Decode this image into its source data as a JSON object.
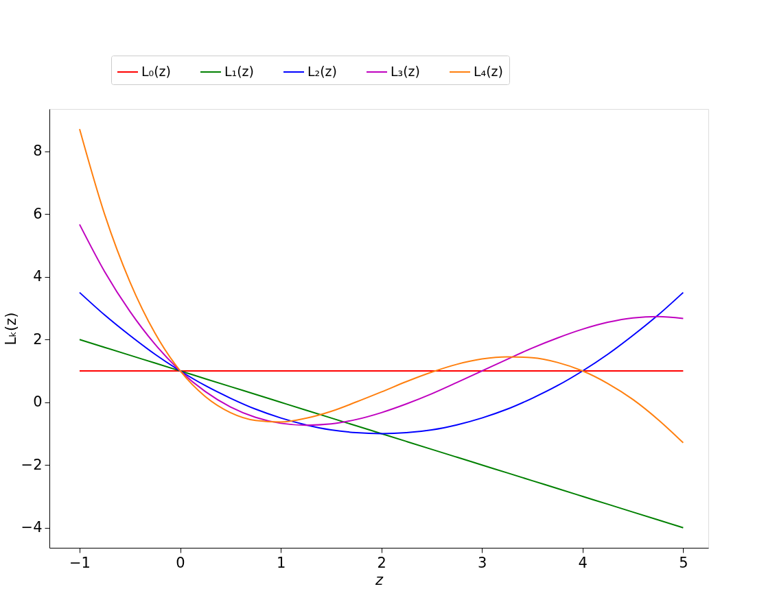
{
  "chart_data": {
    "type": "line",
    "xlabel": "z",
    "ylabel": "Lₖ(z)",
    "x": [
      -1,
      -0.75,
      -0.5,
      -0.25,
      0,
      0.25,
      0.5,
      0.75,
      1,
      1.25,
      1.5,
      1.75,
      2,
      2.25,
      2.5,
      2.75,
      3,
      3.25,
      3.5,
      3.75,
      4,
      4.25,
      4.5,
      4.75,
      5
    ],
    "series": [
      {
        "name": "L₀(z)",
        "color": "#ff0000",
        "values": [
          1,
          1,
          1,
          1,
          1,
          1,
          1,
          1,
          1,
          1,
          1,
          1,
          1,
          1,
          1,
          1,
          1,
          1,
          1,
          1,
          1,
          1,
          1,
          1,
          1
        ]
      },
      {
        "name": "L₁(z)",
        "color": "#008000",
        "values": [
          2,
          1.75,
          1.5,
          1.25,
          1,
          0.75,
          0.5,
          0.25,
          0,
          -0.25,
          -0.5,
          -0.75,
          -1,
          -1.25,
          -1.5,
          -1.75,
          -2,
          -2.25,
          -2.5,
          -2.75,
          -3,
          -3.25,
          -3.5,
          -3.75,
          -4
        ]
      },
      {
        "name": "L₂(z)",
        "color": "#0000ff",
        "values": [
          3.5,
          2.78,
          2.13,
          1.53,
          1,
          0.53,
          0.13,
          -0.22,
          -0.5,
          -0.72,
          -0.88,
          -0.97,
          -1,
          -0.97,
          -0.88,
          -0.72,
          -0.5,
          -0.22,
          0.13,
          0.53,
          1,
          1.53,
          2.13,
          2.78,
          3.5
        ]
      },
      {
        "name": "L₃(z)",
        "color": "#bf00bf",
        "values": [
          5.67,
          4.16,
          2.9,
          1.85,
          1,
          0.34,
          -0.15,
          -0.48,
          -0.67,
          -0.73,
          -0.69,
          -0.55,
          -0.33,
          -0.05,
          0.27,
          0.63,
          1,
          1.37,
          1.73,
          2.05,
          2.33,
          2.55,
          2.69,
          2.73,
          2.67
        ]
      },
      {
        "name": "L₄(z)",
        "color": "#ff7f0e",
        "values": [
          8.71,
          5.98,
          3.84,
          2.2,
          1,
          0.18,
          -0.33,
          -0.58,
          -0.63,
          -0.51,
          -0.29,
          0.01,
          0.33,
          0.66,
          0.96,
          1.21,
          1.38,
          1.45,
          1.42,
          1.27,
          1,
          0.6,
          0.09,
          -0.55,
          -1.29
        ]
      }
    ],
    "xlim": [
      -1.3,
      5.25
    ],
    "ylim": [
      -4.64,
      9.35
    ],
    "xticks": [
      -1,
      0,
      1,
      2,
      3,
      4,
      5
    ],
    "yticks": [
      -4,
      -2,
      0,
      2,
      4,
      6,
      8
    ],
    "grid": false,
    "legend": "top",
    "marker": "none",
    "line_style": "solid"
  }
}
